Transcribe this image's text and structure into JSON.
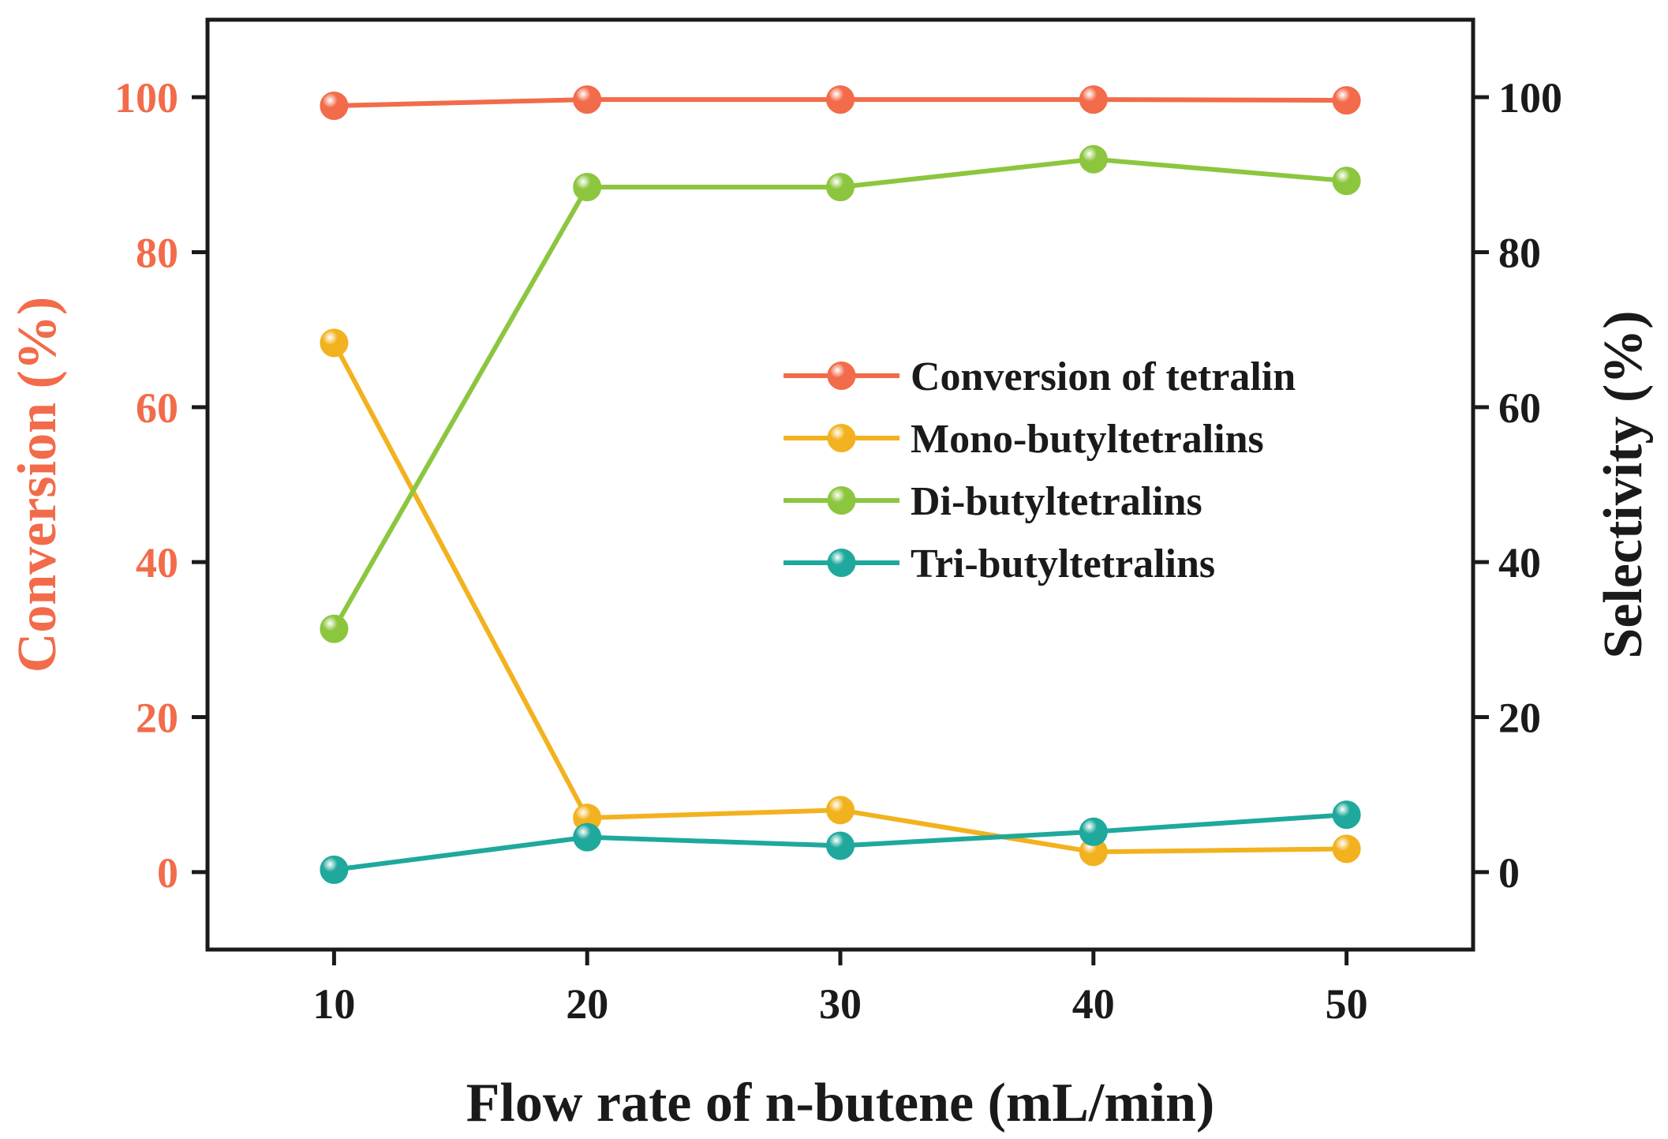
{
  "chart_data": {
    "type": "line",
    "title": "",
    "xlabel": "Flow rate of n-butene (mL/min)",
    "ylabel_left": "Conversion (%)",
    "ylabel_right": "Selectivity (%)",
    "x": [
      10,
      20,
      30,
      40,
      50
    ],
    "xticks": [
      10,
      20,
      30,
      40,
      50
    ],
    "xlim": [
      5,
      55
    ],
    "ylim": [
      -10,
      110
    ],
    "yticks": [
      0,
      20,
      40,
      60,
      80,
      100
    ],
    "legend_position": "center-right",
    "colors": {
      "left_axis": "#f26b4a",
      "right_axis": "#1a1a1a",
      "frame": "#1a1a1a"
    },
    "series": [
      {
        "name": "Conversion of tetralin",
        "axis": "left",
        "color": "#f26b4a",
        "values": [
          98.9,
          99.7,
          99.7,
          99.7,
          99.6
        ]
      },
      {
        "name": "Mono-butyltetralins",
        "axis": "right",
        "color": "#f2b21f",
        "values": [
          68.3,
          7.0,
          8.0,
          2.6,
          3.0
        ]
      },
      {
        "name": "Di-butyltetralins",
        "axis": "right",
        "color": "#8cc63f",
        "values": [
          31.4,
          88.4,
          88.4,
          92.0,
          89.2
        ]
      },
      {
        "name": "Tri-butyltetralins",
        "axis": "right",
        "color": "#1fa89c",
        "values": [
          0.3,
          4.5,
          3.4,
          5.2,
          7.4
        ]
      }
    ]
  }
}
